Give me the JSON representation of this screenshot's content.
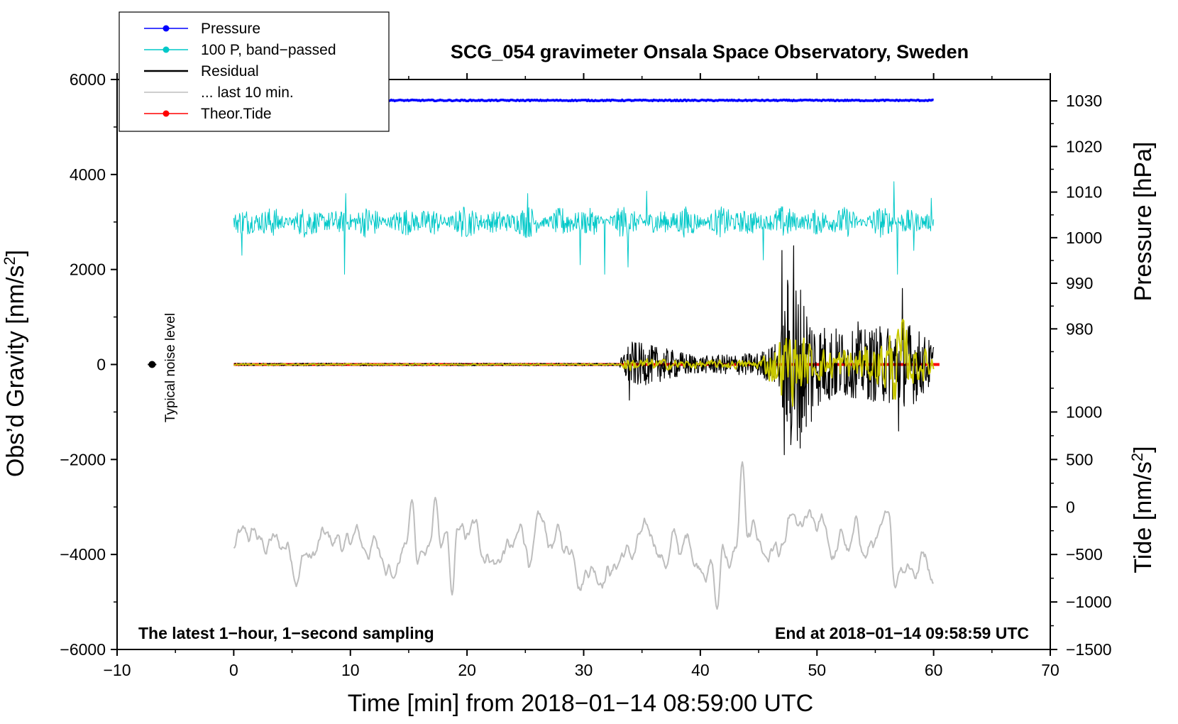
{
  "chart_data": {
    "type": "line",
    "title": "SCG_054 gravimeter Onsala Space Observatory, Sweden",
    "xlabel": "Time [min] from 2018−01−14 08:59:00 UTC",
    "ylabel_left": {
      "text": "Obs’d Gravity [nm/s",
      "sup": "2",
      "close": "]"
    },
    "ylabel_right_pressure": "Pressure [hPa]",
    "ylabel_right_tide": {
      "text": "Tide [nm/s",
      "sup": "2",
      "close": "]"
    },
    "xlim": [
      -10,
      70
    ],
    "ylim": [
      -6000,
      6000
    ],
    "pressure_axis": {
      "value_range": [
        1030,
        980
      ],
      "gravity_range": [
        5550,
        750
      ]
    },
    "tide_axis": {
      "value_range": [
        1000,
        -1500
      ],
      "gravity_range": [
        -1000,
        -6000
      ]
    },
    "x_ticks": [
      "−10",
      "0",
      "10",
      "20",
      "30",
      "40",
      "50",
      "60",
      "70"
    ],
    "x_tick_values": [
      -10,
      0,
      10,
      20,
      30,
      40,
      50,
      60,
      70
    ],
    "y_ticks": [
      "6000",
      "4000",
      "2000",
      "0",
      "−2000",
      "−4000",
      "−6000"
    ],
    "y_tick_values": [
      6000,
      4000,
      2000,
      0,
      -2000,
      -4000,
      -6000
    ],
    "pressure_ticks": [
      "1030",
      "1020",
      "1010",
      "1000",
      "990",
      "980"
    ],
    "pressure_tick_values": [
      1030,
      1020,
      1010,
      1000,
      990,
      980
    ],
    "tide_ticks": [
      "1000",
      "500",
      "0",
      "−500",
      "−1000",
      "−1500"
    ],
    "tide_tick_values": [
      1000,
      500,
      0,
      -500,
      -1000,
      -1500
    ],
    "legend": {
      "position": "top-left",
      "entries": [
        {
          "label": "Pressure",
          "color": "#0000ff",
          "marker": true
        },
        {
          "label": "100 P, band−passed",
          "color": "#00c8c8",
          "marker": true
        },
        {
          "label": "Residual",
          "color": "#000000",
          "marker": false
        },
        {
          "label": "... last 10 min.",
          "color": "#bebebe",
          "marker": false
        },
        {
          "label": "Theor.Tide",
          "color": "#ff0000",
          "marker": true
        }
      ]
    },
    "annotations": {
      "noise_label": "Typical noise level",
      "noise_point": {
        "x": -7,
        "y": 0
      },
      "bottom_left_note": "The latest 1−hour, 1−second sampling",
      "bottom_right_note": "End at 2018−01−14 09:58:59 UTC"
    },
    "series": [
      {
        "name": "Pressure",
        "color": "#0000ff",
        "unit": "hPa",
        "x_range": [
          0,
          60
        ],
        "approx_value": 1030,
        "gravity_level": 5560,
        "variation": 25
      },
      {
        "name": "100 P, band−passed",
        "color": "#00c8c8",
        "unit": "nm/s2",
        "x_range": [
          0,
          60
        ],
        "baseline": 3000,
        "typical_amplitude": 250,
        "spikes": [
          [
            0.7,
            -700
          ],
          [
            9.5,
            -1100
          ],
          [
            9.6,
            600
          ],
          [
            25.2,
            600
          ],
          [
            29.7,
            -900
          ],
          [
            31.8,
            -1100
          ],
          [
            33.8,
            -950
          ],
          [
            35.4,
            650
          ],
          [
            45.4,
            -800
          ],
          [
            56.6,
            850
          ],
          [
            56.9,
            -1100
          ],
          [
            58.3,
            -600
          ],
          [
            59.8,
            500
          ]
        ]
      },
      {
        "name": "Residual",
        "color": "#000000",
        "unit": "nm/s2",
        "x_range": [
          0,
          60
        ],
        "baseline": 0,
        "amplitude_envelope": [
          [
            0,
            30
          ],
          [
            33,
            30
          ],
          [
            33.5,
            300
          ],
          [
            34,
            500
          ],
          [
            40,
            180
          ],
          [
            45,
            250
          ],
          [
            46.8,
            500
          ],
          [
            47.5,
            1900
          ],
          [
            48.5,
            1800
          ],
          [
            50,
            900
          ],
          [
            53,
            700
          ],
          [
            55,
            800
          ],
          [
            58,
            900
          ],
          [
            60,
            450
          ]
        ],
        "spikes": [
          [
            33.9,
            -750
          ],
          [
            47.0,
            2400
          ],
          [
            47.2,
            -1900
          ],
          [
            48.0,
            2500
          ],
          [
            48.3,
            -1600
          ],
          [
            49.5,
            -1200
          ],
          [
            53.5,
            900
          ],
          [
            57.3,
            1600
          ],
          [
            57.0,
            -1400
          ]
        ]
      },
      {
        "name": "Yellow smoothed residual",
        "color": "#c8c800",
        "unit": "nm/s2",
        "x_range": [
          0,
          60
        ],
        "baseline": 0,
        "amplitude_envelope": [
          [
            0,
            12
          ],
          [
            33,
            12
          ],
          [
            33.5,
            130
          ],
          [
            40,
            70
          ],
          [
            45,
            90
          ],
          [
            47,
            600
          ],
          [
            48,
            700
          ],
          [
            50,
            300
          ],
          [
            55,
            350
          ],
          [
            57.3,
            900
          ],
          [
            58,
            400
          ],
          [
            60,
            250
          ]
        ]
      },
      {
        "name": "Theor.Tide",
        "color": "#ff0000",
        "unit": "nm/s2",
        "x_range": [
          0,
          60.5
        ],
        "value": 0
      },
      {
        "name": "... last 10 min.",
        "color": "#bebebe",
        "unit": "nm/s2",
        "x_range": [
          0,
          60
        ],
        "baseline": -3900,
        "typical_amplitude": 450,
        "peaks": [
          [
            15.3,
            -2850
          ],
          [
            17.3,
            -2800
          ],
          [
            43.6,
            -2050
          ],
          [
            47.9,
            -3150
          ],
          [
            56.1,
            -3100
          ]
        ],
        "troughs": [
          [
            18.7,
            -4850
          ],
          [
            41.4,
            -5150
          ],
          [
            56.7,
            -4700
          ],
          [
            13.7,
            -4500
          ]
        ]
      }
    ]
  }
}
